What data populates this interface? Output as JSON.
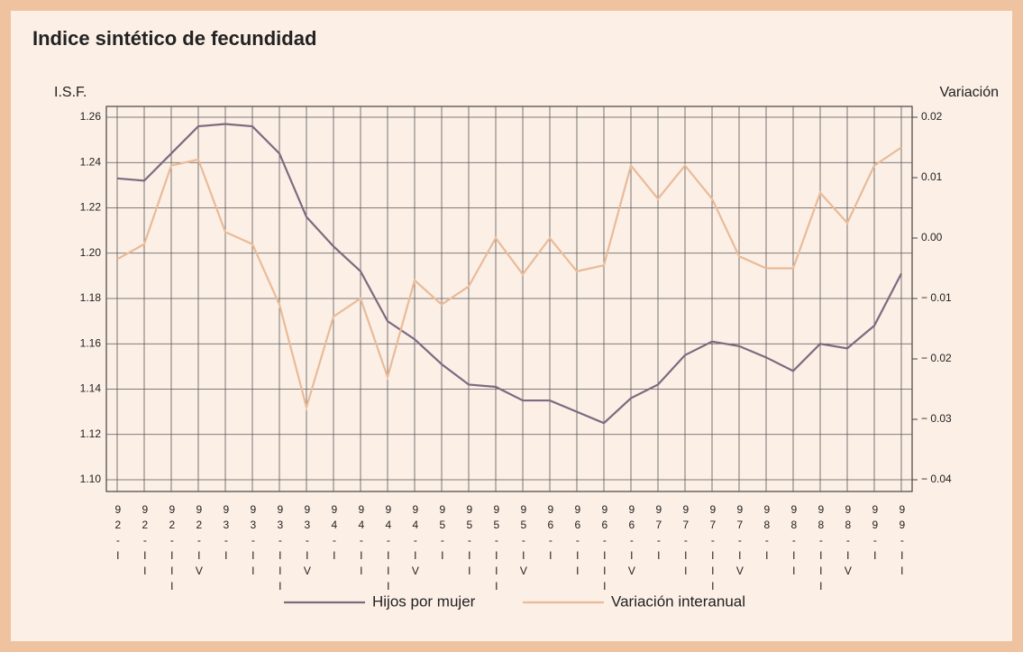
{
  "chart_data": {
    "type": "line",
    "title": "Indice sintético de fecundidad",
    "y_label": "I.S.F.",
    "y2_label": "Variación",
    "categories": [
      "92-I",
      "92-II",
      "92-III",
      "92-IV",
      "93-I",
      "93-II",
      "93-III",
      "93-IV",
      "94-I",
      "94-II",
      "94-III",
      "94-IV",
      "95-I",
      "95-II",
      "95-III",
      "95-IV",
      "96-I",
      "96-II",
      "96-III",
      "96-IV",
      "97-I",
      "97-II",
      "97-III",
      "97-IV",
      "98-I",
      "98-II",
      "98-III",
      "98-IV",
      "99-I",
      "99-II"
    ],
    "series": [
      {
        "name": "Hijos por mujer",
        "color": "#7d6a80",
        "values": [
          1.233,
          1.232,
          1.244,
          1.256,
          1.257,
          1.256,
          1.244,
          1.216,
          1.203,
          1.192,
          1.17,
          1.162,
          1.151,
          1.142,
          1.141,
          1.135,
          1.135,
          1.13,
          1.125,
          1.136,
          1.142,
          1.155,
          1.161,
          1.159,
          1.154,
          1.148,
          1.16,
          1.158,
          1.168,
          1.191
        ]
      },
      {
        "name": "Variación interanual",
        "color": "#e9bb98",
        "axis": "y2",
        "values": [
          -0.0035,
          -0.001,
          0.012,
          0.013,
          0.001,
          -0.001,
          -0.011,
          -0.028,
          -0.013,
          -0.01,
          -0.023,
          -0.007,
          -0.011,
          -0.008,
          0.0,
          -0.006,
          0.0,
          -0.0055,
          -0.0045,
          0.012,
          0.0065,
          0.012,
          0.0065,
          -0.003,
          -0.005,
          -0.005,
          0.0075,
          0.0025,
          0.012,
          0.015
        ]
      }
    ],
    "ylim": [
      1.1,
      1.26
    ],
    "yticks": [
      {
        "value": 1.1,
        "label": "1.10"
      },
      1.12,
      1.14,
      1.16,
      1.18,
      {
        "value": 1.2,
        "label": "1.20"
      },
      1.22,
      1.24,
      1.26
    ],
    "y2lim": [
      -0.04,
      0.02
    ],
    "y2ticks": [
      {
        "value": -0.04,
        "label": "− 0.04"
      },
      {
        "value": -0.03,
        "label": "− 0.03"
      },
      {
        "value": -0.02,
        "label": "− 0.02"
      },
      {
        "value": -0.01,
        "label": "− 0.01"
      },
      {
        "value": 0,
        "label": "0.00"
      },
      0.01,
      0.02
    ],
    "grid": true,
    "legend": "bottom"
  }
}
